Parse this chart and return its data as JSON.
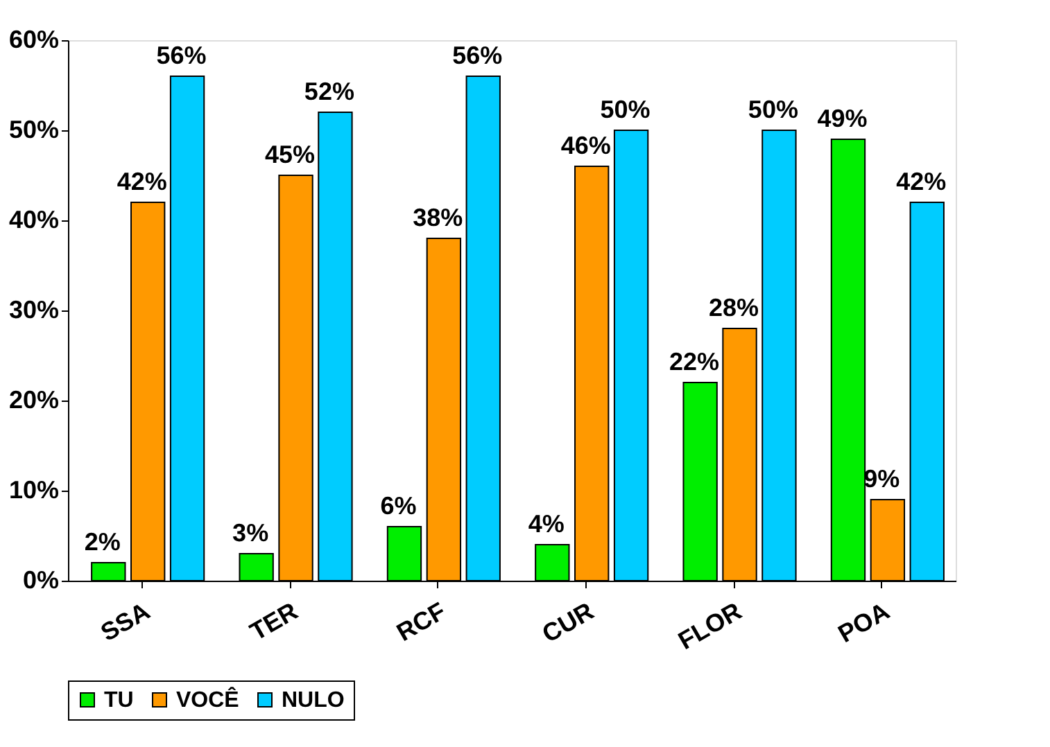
{
  "chart_data": {
    "type": "bar",
    "categories": [
      "SSA",
      "TER",
      "RCF",
      "CUR",
      "FLOR",
      "POA"
    ],
    "series": [
      {
        "name": "TU",
        "color": "#00ee00",
        "values": [
          2,
          3,
          6,
          4,
          22,
          49
        ],
        "value_labels": [
          "2%",
          "3%",
          "6%",
          "4%",
          "22%",
          "49%"
        ]
      },
      {
        "name": "VOCÊ",
        "color": "#ff9900",
        "values": [
          42,
          45,
          38,
          46,
          28,
          9
        ],
        "value_labels": [
          "42%",
          "45%",
          "38%",
          "46%",
          "28%",
          "9%"
        ]
      },
      {
        "name": "NULO",
        "color": "#00ccff",
        "values": [
          56,
          52,
          56,
          50,
          50,
          42
        ],
        "value_labels": [
          "56%",
          "52%",
          "56%",
          "50%",
          "50%",
          "42%"
        ]
      }
    ],
    "ylim": [
      0,
      60
    ],
    "yticks": [
      {
        "value": 0,
        "label": "0%"
      },
      {
        "value": 10,
        "label": "10%"
      },
      {
        "value": 20,
        "label": "20%"
      },
      {
        "value": 30,
        "label": "30%"
      },
      {
        "value": 40,
        "label": "40%"
      },
      {
        "value": 50,
        "label": "50%"
      },
      {
        "value": 60,
        "label": "60%"
      }
    ],
    "grid": false,
    "legend": "bottom"
  }
}
